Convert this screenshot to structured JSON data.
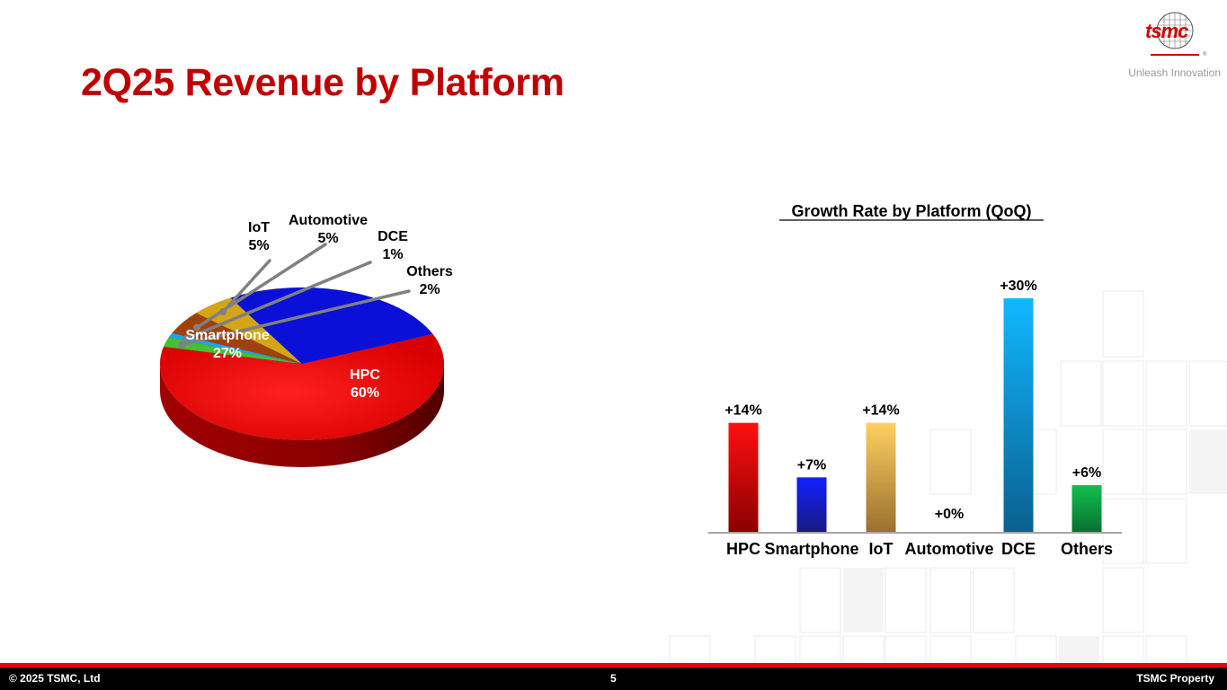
{
  "slide": {
    "title": "2Q25 Revenue by Platform",
    "tagline": "Unleash Innovation",
    "logo_text": "tsmc"
  },
  "footer": {
    "copyright": "©  2025 TSMC, Ltd",
    "page_number": "5",
    "property": "TSMC Property"
  },
  "colors": {
    "title": "#c00000",
    "hpc": "#e60000",
    "smartphone": "#0a10d8",
    "iot": "#d4a517",
    "automotive": "#a0400a",
    "dce": "#18a8e8",
    "others": "#44c030"
  },
  "chart_data": [
    {
      "type": "pie",
      "title": "",
      "slices": [
        {
          "name": "HPC",
          "value": 60,
          "label": "HPC",
          "value_label": "60%"
        },
        {
          "name": "Others",
          "value": 2,
          "label": "Others",
          "value_label": "2%"
        },
        {
          "name": "DCE",
          "value": 1,
          "label": "DCE",
          "value_label": "1%"
        },
        {
          "name": "Automotive",
          "value": 5,
          "label": "Automotive",
          "value_label": "5%"
        },
        {
          "name": "IoT",
          "value": 5,
          "label": "IoT",
          "value_label": "5%"
        },
        {
          "name": "Smartphone",
          "value": 27,
          "label": "Smartphone",
          "value_label": "27%"
        }
      ]
    },
    {
      "type": "bar",
      "title": "Growth Rate by Platform (QoQ)",
      "categories": [
        "HPC",
        "Smartphone",
        "IoT",
        "Automotive",
        "DCE",
        "Others"
      ],
      "values": [
        14,
        7,
        14,
        0,
        30,
        6
      ],
      "value_labels": [
        "+14%",
        "+7%",
        "+14%",
        "+0%",
        "+30%",
        "+6%"
      ],
      "xlabel": "",
      "ylabel": "",
      "ylim": [
        0,
        30
      ],
      "grid": false
    }
  ]
}
